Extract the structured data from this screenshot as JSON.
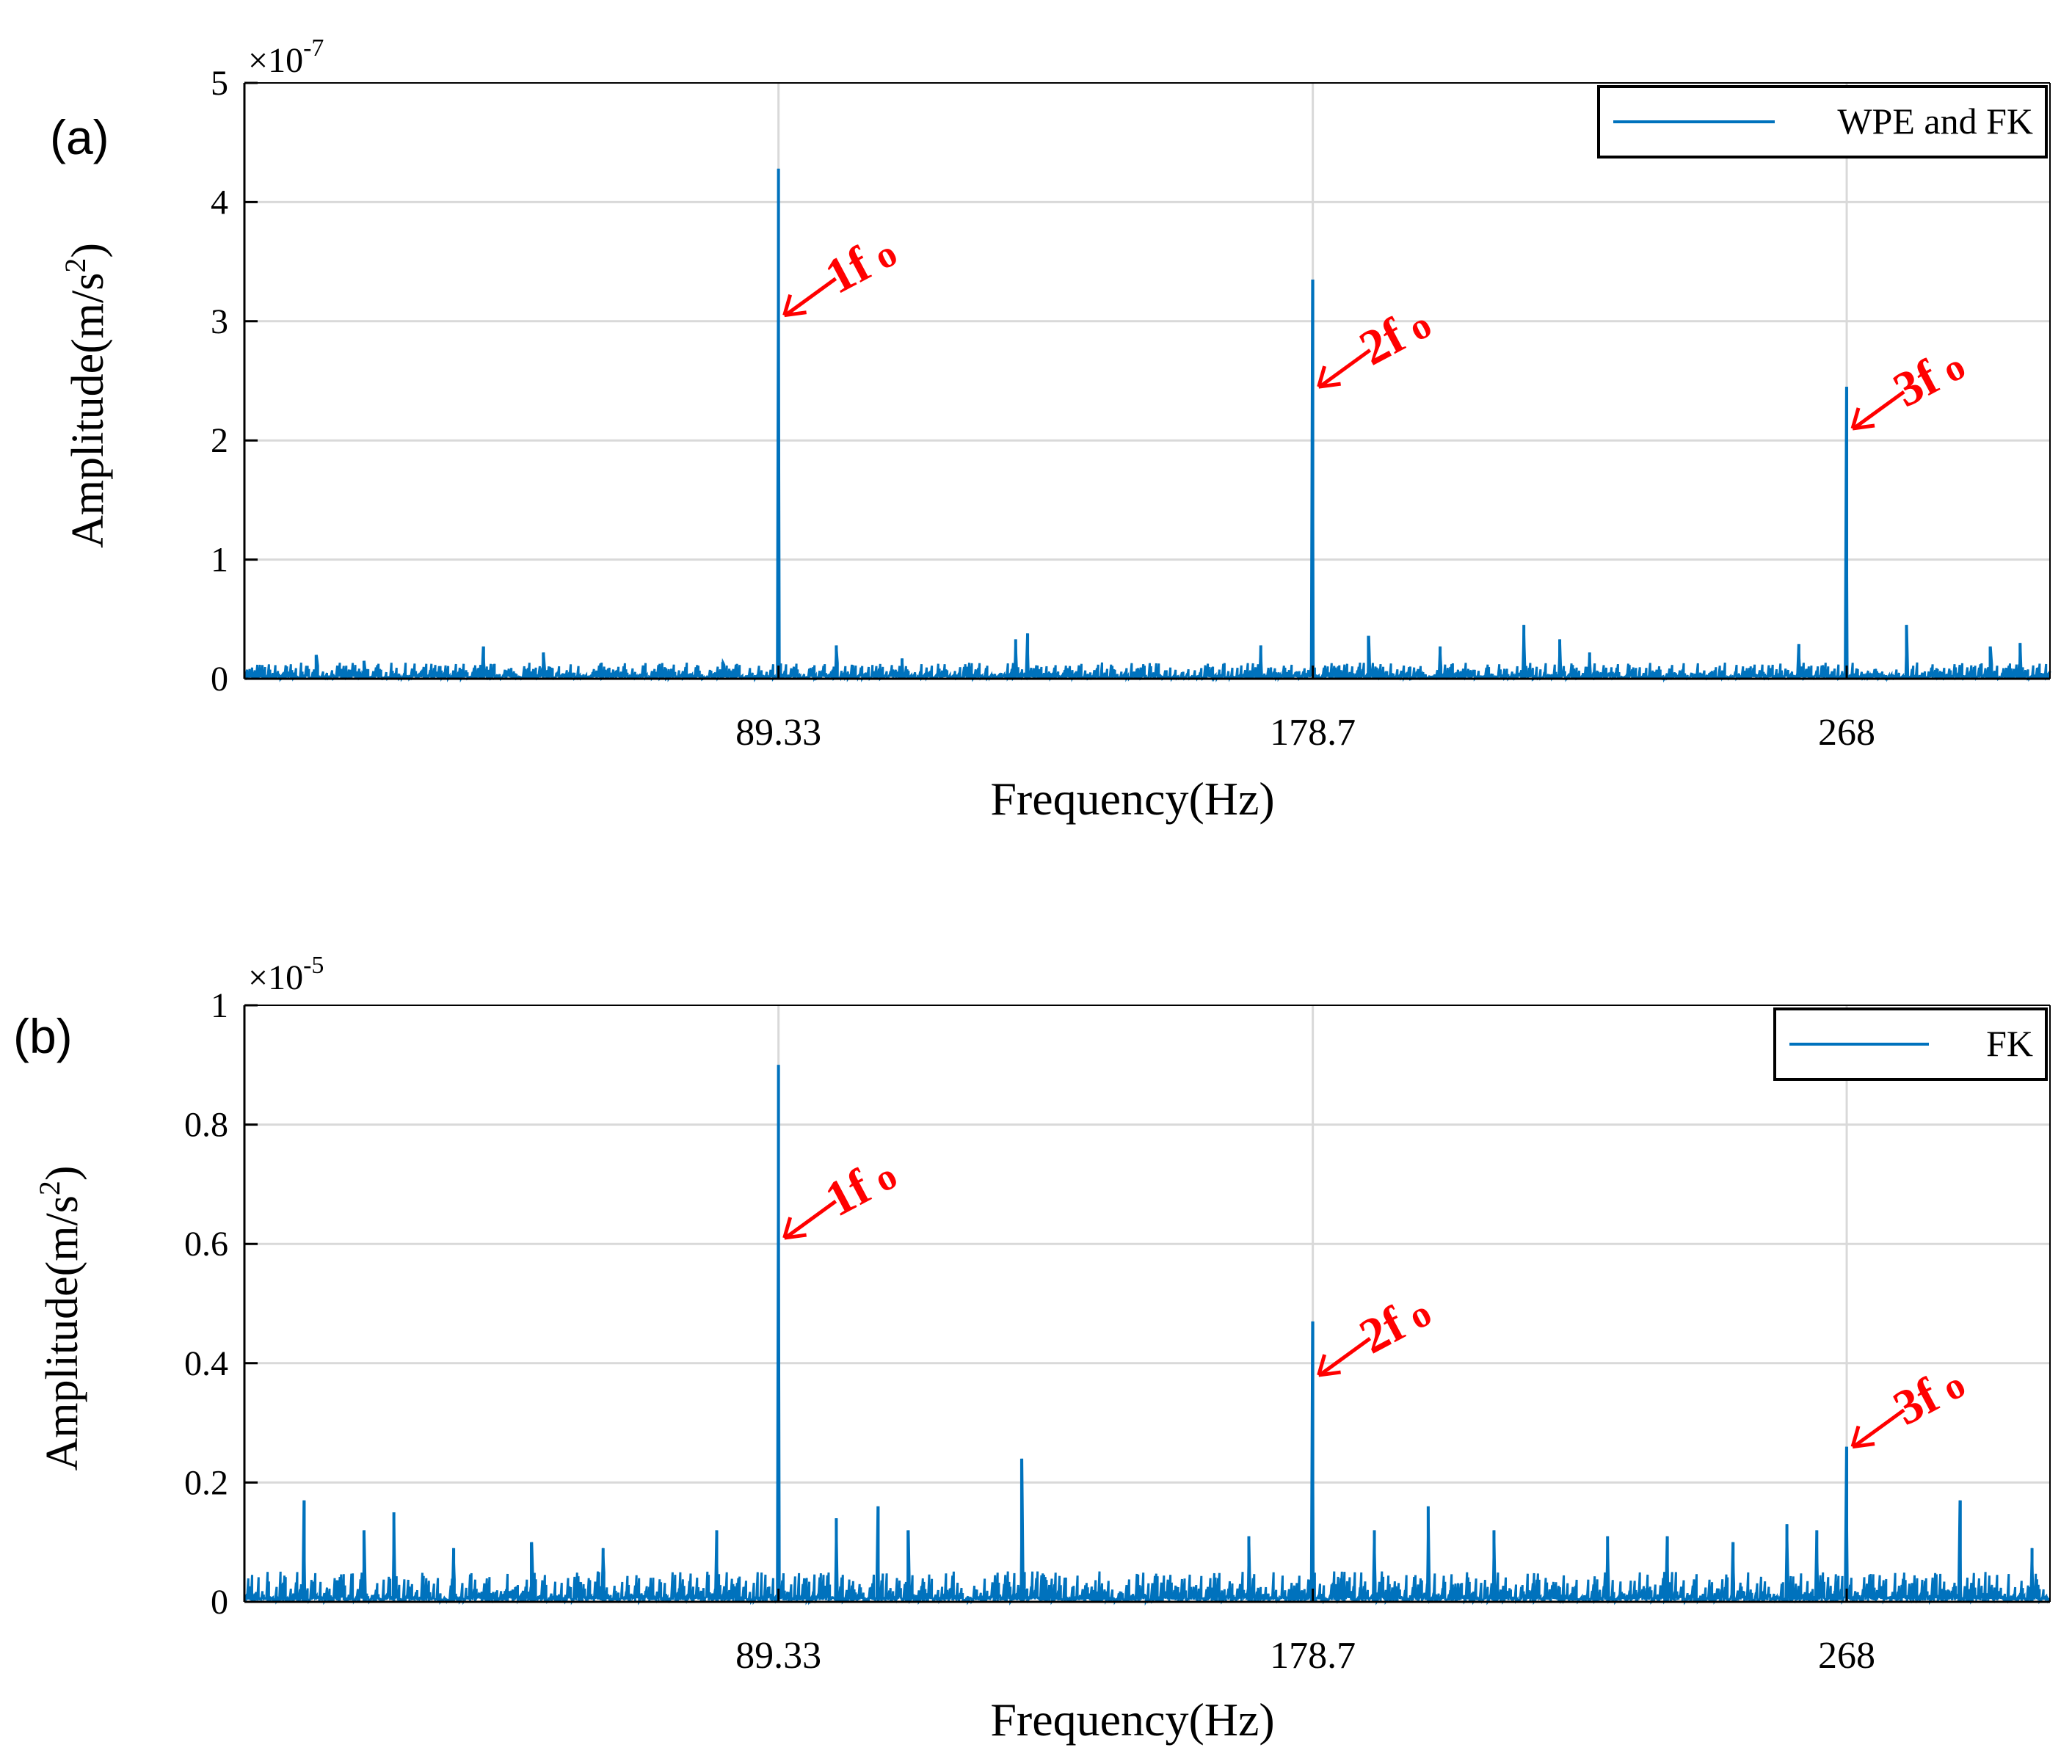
{
  "colors": {
    "series": "#0072BD",
    "annotation": "#ff0000",
    "grid": "#d9d9d9",
    "axis": "#000000"
  },
  "chart_data": [
    {
      "panel_label": "(a)",
      "type": "line",
      "title": "",
      "xlabel": "Frequency(Hz)",
      "ylabel": "Amplitude(m/s²)",
      "ylabel_main": "Amplitude(m/s",
      "ylabel_sup": "2",
      "ylabel_close": ")",
      "y_exponent_base": "×10",
      "y_exponent_power": "-7",
      "xlim": [
        0,
        302
      ],
      "ylim": [
        0,
        5
      ],
      "xticks": [
        89.33,
        178.7,
        268
      ],
      "xtick_labels": [
        "89.33",
        "178.7",
        "268"
      ],
      "yticks": [
        0,
        1,
        2,
        3,
        4,
        5
      ],
      "ytick_labels": [
        "0",
        "1",
        "2",
        "3",
        "4",
        "5"
      ],
      "grid": true,
      "legend": {
        "entries": [
          "WPE and FK"
        ],
        "placement": "top-right"
      },
      "noise_level": 0.08,
      "series": [
        {
          "name": "WPE and FK",
          "peaks": [
            {
              "x": 89.33,
              "y": 4.28
            },
            {
              "x": 178.7,
              "y": 3.35
            },
            {
              "x": 268,
              "y": 2.45
            },
            {
              "x": 12,
              "y": 0.2
            },
            {
              "x": 20,
              "y": 0.15
            },
            {
              "x": 40,
              "y": 0.27
            },
            {
              "x": 50,
              "y": 0.22
            },
            {
              "x": 80,
              "y": 0.14
            },
            {
              "x": 99,
              "y": 0.28
            },
            {
              "x": 110,
              "y": 0.17
            },
            {
              "x": 129,
              "y": 0.33
            },
            {
              "x": 131,
              "y": 0.38
            },
            {
              "x": 170,
              "y": 0.28
            },
            {
              "x": 188,
              "y": 0.36
            },
            {
              "x": 200,
              "y": 0.27
            },
            {
              "x": 214,
              "y": 0.45
            },
            {
              "x": 220,
              "y": 0.33
            },
            {
              "x": 225,
              "y": 0.22
            },
            {
              "x": 260,
              "y": 0.29
            },
            {
              "x": 278,
              "y": 0.45
            },
            {
              "x": 292,
              "y": 0.27
            },
            {
              "x": 297,
              "y": 0.3
            }
          ]
        }
      ],
      "annotations": [
        {
          "text": "1f",
          "sub": "o",
          "x": 89.33,
          "y": 3.05
        },
        {
          "text": "2f",
          "sub": "o",
          "x": 178.7,
          "y": 2.45
        },
        {
          "text": "3f",
          "sub": "o",
          "x": 268,
          "y": 2.1
        }
      ]
    },
    {
      "panel_label": "(b)",
      "type": "line",
      "title": "",
      "xlabel": "Frequency(Hz)",
      "ylabel": "Amplitude(m/s²)",
      "ylabel_main": "Amplitude(m/s",
      "ylabel_sup": "2",
      "ylabel_close": ")",
      "y_exponent_base": "×10",
      "y_exponent_power": "-5",
      "xlim": [
        0,
        302
      ],
      "ylim": [
        0,
        1
      ],
      "xticks": [
        89.33,
        178.7,
        268
      ],
      "xtick_labels": [
        "89.33",
        "178.7",
        "268"
      ],
      "yticks": [
        0,
        0.2,
        0.4,
        0.6,
        0.8,
        1
      ],
      "ytick_labels": [
        "0",
        "0.2",
        "0.4",
        "0.6",
        "0.8",
        "1"
      ],
      "grid": true,
      "legend": {
        "entries": [
          "FK"
        ],
        "placement": "top-right"
      },
      "noise_level": 0.03,
      "series": [
        {
          "name": "FK",
          "peaks": [
            {
              "x": 89.33,
              "y": 0.9
            },
            {
              "x": 178.7,
              "y": 0.47
            },
            {
              "x": 268,
              "y": 0.26
            },
            {
              "x": 10,
              "y": 0.17
            },
            {
              "x": 20,
              "y": 0.12
            },
            {
              "x": 25,
              "y": 0.15
            },
            {
              "x": 35,
              "y": 0.09
            },
            {
              "x": 48,
              "y": 0.1
            },
            {
              "x": 60,
              "y": 0.09
            },
            {
              "x": 79,
              "y": 0.12
            },
            {
              "x": 99,
              "y": 0.14
            },
            {
              "x": 106,
              "y": 0.16
            },
            {
              "x": 111,
              "y": 0.12
            },
            {
              "x": 130,
              "y": 0.24
            },
            {
              "x": 168,
              "y": 0.11
            },
            {
              "x": 189,
              "y": 0.12
            },
            {
              "x": 198,
              "y": 0.16
            },
            {
              "x": 209,
              "y": 0.12
            },
            {
              "x": 228,
              "y": 0.11
            },
            {
              "x": 238,
              "y": 0.11
            },
            {
              "x": 249,
              "y": 0.1
            },
            {
              "x": 258,
              "y": 0.13
            },
            {
              "x": 263,
              "y": 0.12
            },
            {
              "x": 287,
              "y": 0.17
            },
            {
              "x": 299,
              "y": 0.09
            }
          ]
        }
      ],
      "annotations": [
        {
          "text": "1f",
          "sub": "o",
          "x": 89.33,
          "y": 0.61
        },
        {
          "text": "2f",
          "sub": "o",
          "x": 178.7,
          "y": 0.38
        },
        {
          "text": "3f",
          "sub": "o",
          "x": 268,
          "y": 0.26
        }
      ]
    }
  ]
}
